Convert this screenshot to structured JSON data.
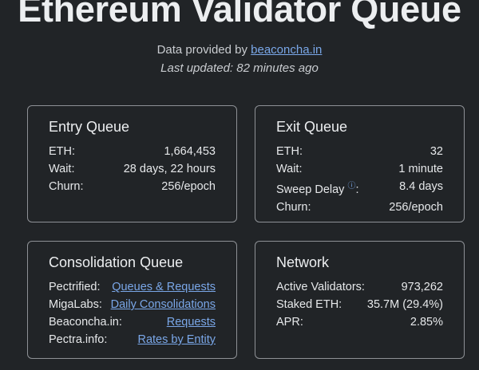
{
  "header": {
    "title": "Ethereum Validator Queue",
    "provided_prefix": "Data provided by ",
    "provider_link": "beaconcha.in",
    "last_updated": "Last updated: 82 minutes ago"
  },
  "entry": {
    "title": "Entry Queue",
    "rows": [
      {
        "label": "ETH:",
        "value": "1,664,453"
      },
      {
        "label": "Wait:",
        "value": "28 days, 22 hours"
      },
      {
        "label": "Churn:",
        "value": "256/epoch"
      }
    ]
  },
  "exit": {
    "title": "Exit Queue",
    "rows": [
      {
        "label": "ETH:",
        "value": "32"
      },
      {
        "label": "Wait:",
        "value": "1 minute"
      },
      {
        "label": "Sweep Delay",
        "value": "8.4 days"
      },
      {
        "label": "Churn:",
        "value": "256/epoch"
      }
    ],
    "info_icon": "ⓘ",
    "colon": ":"
  },
  "consolidation": {
    "title": "Consolidation Queue",
    "rows": [
      {
        "label": "Pectrified:",
        "link": "Queues & Requests"
      },
      {
        "label": "MigaLabs:",
        "link": "Daily Consolidations"
      },
      {
        "label": "Beaconcha.in:",
        "link": "Requests"
      },
      {
        "label": "Pectra.info:",
        "link": "Rates by Entity"
      }
    ]
  },
  "network": {
    "title": "Network",
    "rows": [
      {
        "label": "Active Validators:",
        "value": "973,262"
      },
      {
        "label": "Staked ETH:",
        "value": "35.7M (29.4%)"
      },
      {
        "label": "APR:",
        "value": "2.85%"
      }
    ]
  },
  "colors": {
    "background": "#212427",
    "link": "#7aa7e8",
    "border": "#8e9196"
  }
}
